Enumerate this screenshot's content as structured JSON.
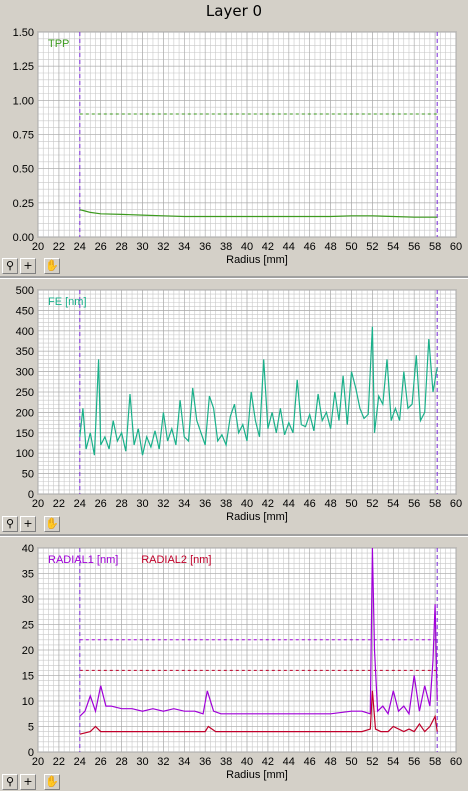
{
  "window": {
    "title": "Layer 0"
  },
  "toolbar_icons": [
    "zoom-icon",
    "crosshair-icon",
    "pan-hand-icon"
  ],
  "colors": {
    "tpp": "#3c9a1e",
    "fe": "#1ab08a",
    "radial1": "#a000d8",
    "radial2": "#c0002a",
    "marker": "#7a2ad8",
    "grid": "#c8c8c8"
  },
  "chart_data": [
    {
      "id": "tpp",
      "type": "line",
      "xlabel": "Radius [mm]",
      "ylabel": "",
      "xlim": [
        20,
        60
      ],
      "ylim": [
        0,
        1.5
      ],
      "xticks": [
        "20",
        "22",
        "24",
        "26",
        "28",
        "30",
        "32",
        "34",
        "36",
        "38",
        "40",
        "42",
        "44",
        "46",
        "48",
        "50",
        "52",
        "54",
        "56",
        "58",
        "60"
      ],
      "yticks": [
        "0.00",
        "0.25",
        "0.50",
        "0.75",
        "1.00",
        "1.25",
        "1.50"
      ],
      "grid": true,
      "legend_position": "top-left",
      "series": [
        {
          "name": "TPP",
          "color": "#3c9a1e",
          "x": [
            24,
            24.5,
            25,
            26,
            28,
            30,
            32,
            34,
            36,
            38,
            40,
            42,
            44,
            46,
            48,
            50,
            52,
            54,
            56,
            57.5,
            58.2
          ],
          "y": [
            0.2,
            0.19,
            0.18,
            0.17,
            0.165,
            0.16,
            0.155,
            0.15,
            0.15,
            0.15,
            0.15,
            0.15,
            0.15,
            0.15,
            0.15,
            0.155,
            0.155,
            0.15,
            0.145,
            0.145,
            0.145
          ]
        }
      ],
      "thresholds": [
        {
          "value": 0.9,
          "color": "#3c9a1e"
        }
      ],
      "vmarkers": [
        24,
        58.2
      ]
    },
    {
      "id": "fe",
      "type": "line",
      "xlabel": "Radius [mm]",
      "ylabel": "",
      "xlim": [
        20,
        60
      ],
      "ylim": [
        0,
        500
      ],
      "xticks": [
        "20",
        "22",
        "24",
        "26",
        "28",
        "30",
        "32",
        "34",
        "36",
        "38",
        "40",
        "42",
        "44",
        "46",
        "48",
        "50",
        "52",
        "54",
        "56",
        "58",
        "60"
      ],
      "yticks": [
        "0",
        "50",
        "100",
        "150",
        "200",
        "250",
        "300",
        "350",
        "400",
        "450",
        "500"
      ],
      "grid": true,
      "legend_position": "top-left",
      "series": [
        {
          "name": "FE [nm]",
          "color": "#1ab08a",
          "x": [
            24,
            24.3,
            24.6,
            25,
            25.4,
            25.8,
            26,
            26.4,
            26.8,
            27.2,
            27.6,
            28,
            28.4,
            28.8,
            29.2,
            29.6,
            30,
            30.4,
            30.8,
            31.2,
            31.6,
            32,
            32.4,
            32.8,
            33.2,
            33.6,
            34,
            34.4,
            34.8,
            35.2,
            35.6,
            36,
            36.4,
            36.8,
            37.2,
            37.6,
            38,
            38.4,
            38.8,
            39.2,
            39.6,
            40,
            40.4,
            40.8,
            41.2,
            41.6,
            42,
            42.4,
            42.8,
            43.2,
            43.6,
            44,
            44.4,
            44.8,
            45.2,
            45.6,
            46,
            46.4,
            46.8,
            47.2,
            47.6,
            48,
            48.4,
            48.8,
            49.2,
            49.6,
            50,
            50.4,
            50.8,
            51.2,
            51.6,
            52,
            52.2,
            52.6,
            53,
            53.4,
            53.8,
            54.2,
            54.6,
            55,
            55.4,
            55.8,
            56.2,
            56.6,
            57,
            57.4,
            57.8,
            58.2
          ],
          "y": [
            140,
            210,
            110,
            150,
            95,
            330,
            120,
            140,
            110,
            180,
            130,
            150,
            105,
            245,
            120,
            160,
            95,
            140,
            115,
            155,
            110,
            200,
            130,
            160,
            120,
            230,
            140,
            130,
            260,
            180,
            150,
            120,
            240,
            210,
            130,
            145,
            120,
            190,
            220,
            150,
            170,
            130,
            250,
            180,
            140,
            330,
            160,
            200,
            150,
            210,
            145,
            175,
            150,
            280,
            170,
            165,
            195,
            155,
            245,
            180,
            200,
            160,
            250,
            180,
            290,
            170,
            300,
            260,
            210,
            185,
            195,
            410,
            150,
            240,
            220,
            330,
            180,
            210,
            180,
            300,
            210,
            220,
            340,
            180,
            200,
            380,
            250,
            310
          ]
        }
      ],
      "vmarkers": [
        24,
        58.2
      ]
    },
    {
      "id": "radial",
      "type": "line",
      "xlabel": "Radius [mm]",
      "ylabel": "",
      "xlim": [
        20,
        60
      ],
      "ylim": [
        0,
        40
      ],
      "xticks": [
        "20",
        "22",
        "24",
        "26",
        "28",
        "30",
        "32",
        "34",
        "36",
        "38",
        "40",
        "42",
        "44",
        "46",
        "48",
        "50",
        "52",
        "54",
        "56",
        "58",
        "60"
      ],
      "yticks": [
        "0",
        "5",
        "10",
        "15",
        "20",
        "25",
        "30",
        "35",
        "40"
      ],
      "grid": true,
      "legend_position": "top-left",
      "series": [
        {
          "name": "RADIAL1 [nm]",
          "color": "#a000d8",
          "x": [
            24,
            24.5,
            25,
            25.5,
            26,
            26.5,
            27,
            28,
            29,
            30,
            31,
            32,
            33,
            34,
            35,
            35.8,
            36.2,
            36.8,
            37.5,
            38,
            40,
            42,
            44,
            46,
            48,
            50,
            51,
            51.8,
            52,
            52.2,
            52.5,
            53,
            53.5,
            54,
            54.5,
            55,
            55.5,
            56,
            56.5,
            57,
            57.5,
            57.8,
            58,
            58.2
          ],
          "y": [
            7,
            8,
            11,
            8,
            13,
            9,
            9,
            8.5,
            8.5,
            8,
            8.5,
            8,
            8.5,
            8,
            8,
            7.5,
            12,
            8,
            7.5,
            7.5,
            7.5,
            7.5,
            7.5,
            7.5,
            7.5,
            8,
            8,
            7.5,
            40,
            20,
            8,
            9,
            7.5,
            12,
            8,
            9,
            7.5,
            15,
            8,
            13,
            9,
            18,
            29,
            10
          ]
        },
        {
          "name": "RADIAL2 [nm]",
          "color": "#c0002a",
          "x": [
            24,
            25,
            25.5,
            26,
            27,
            28,
            30,
            32,
            34,
            36,
            36.3,
            37,
            38,
            40,
            42,
            44,
            46,
            48,
            50,
            51,
            51.8,
            52,
            52.3,
            52.8,
            53.5,
            54,
            55,
            55.5,
            56,
            56.5,
            57,
            57.5,
            58,
            58.2
          ],
          "y": [
            3.5,
            4,
            5,
            4,
            4,
            4,
            4,
            4,
            4,
            4,
            5,
            4,
            4,
            4,
            4,
            4,
            4,
            4,
            4,
            4,
            4.5,
            12,
            4.5,
            4,
            4,
            5,
            4,
            4.5,
            4,
            5.5,
            4,
            5,
            7,
            4
          ]
        }
      ],
      "thresholds": [
        {
          "value": 22,
          "color": "#a000d8"
        },
        {
          "value": 16,
          "color": "#c0002a"
        }
      ],
      "vmarkers": [
        24,
        58.2
      ]
    }
  ]
}
